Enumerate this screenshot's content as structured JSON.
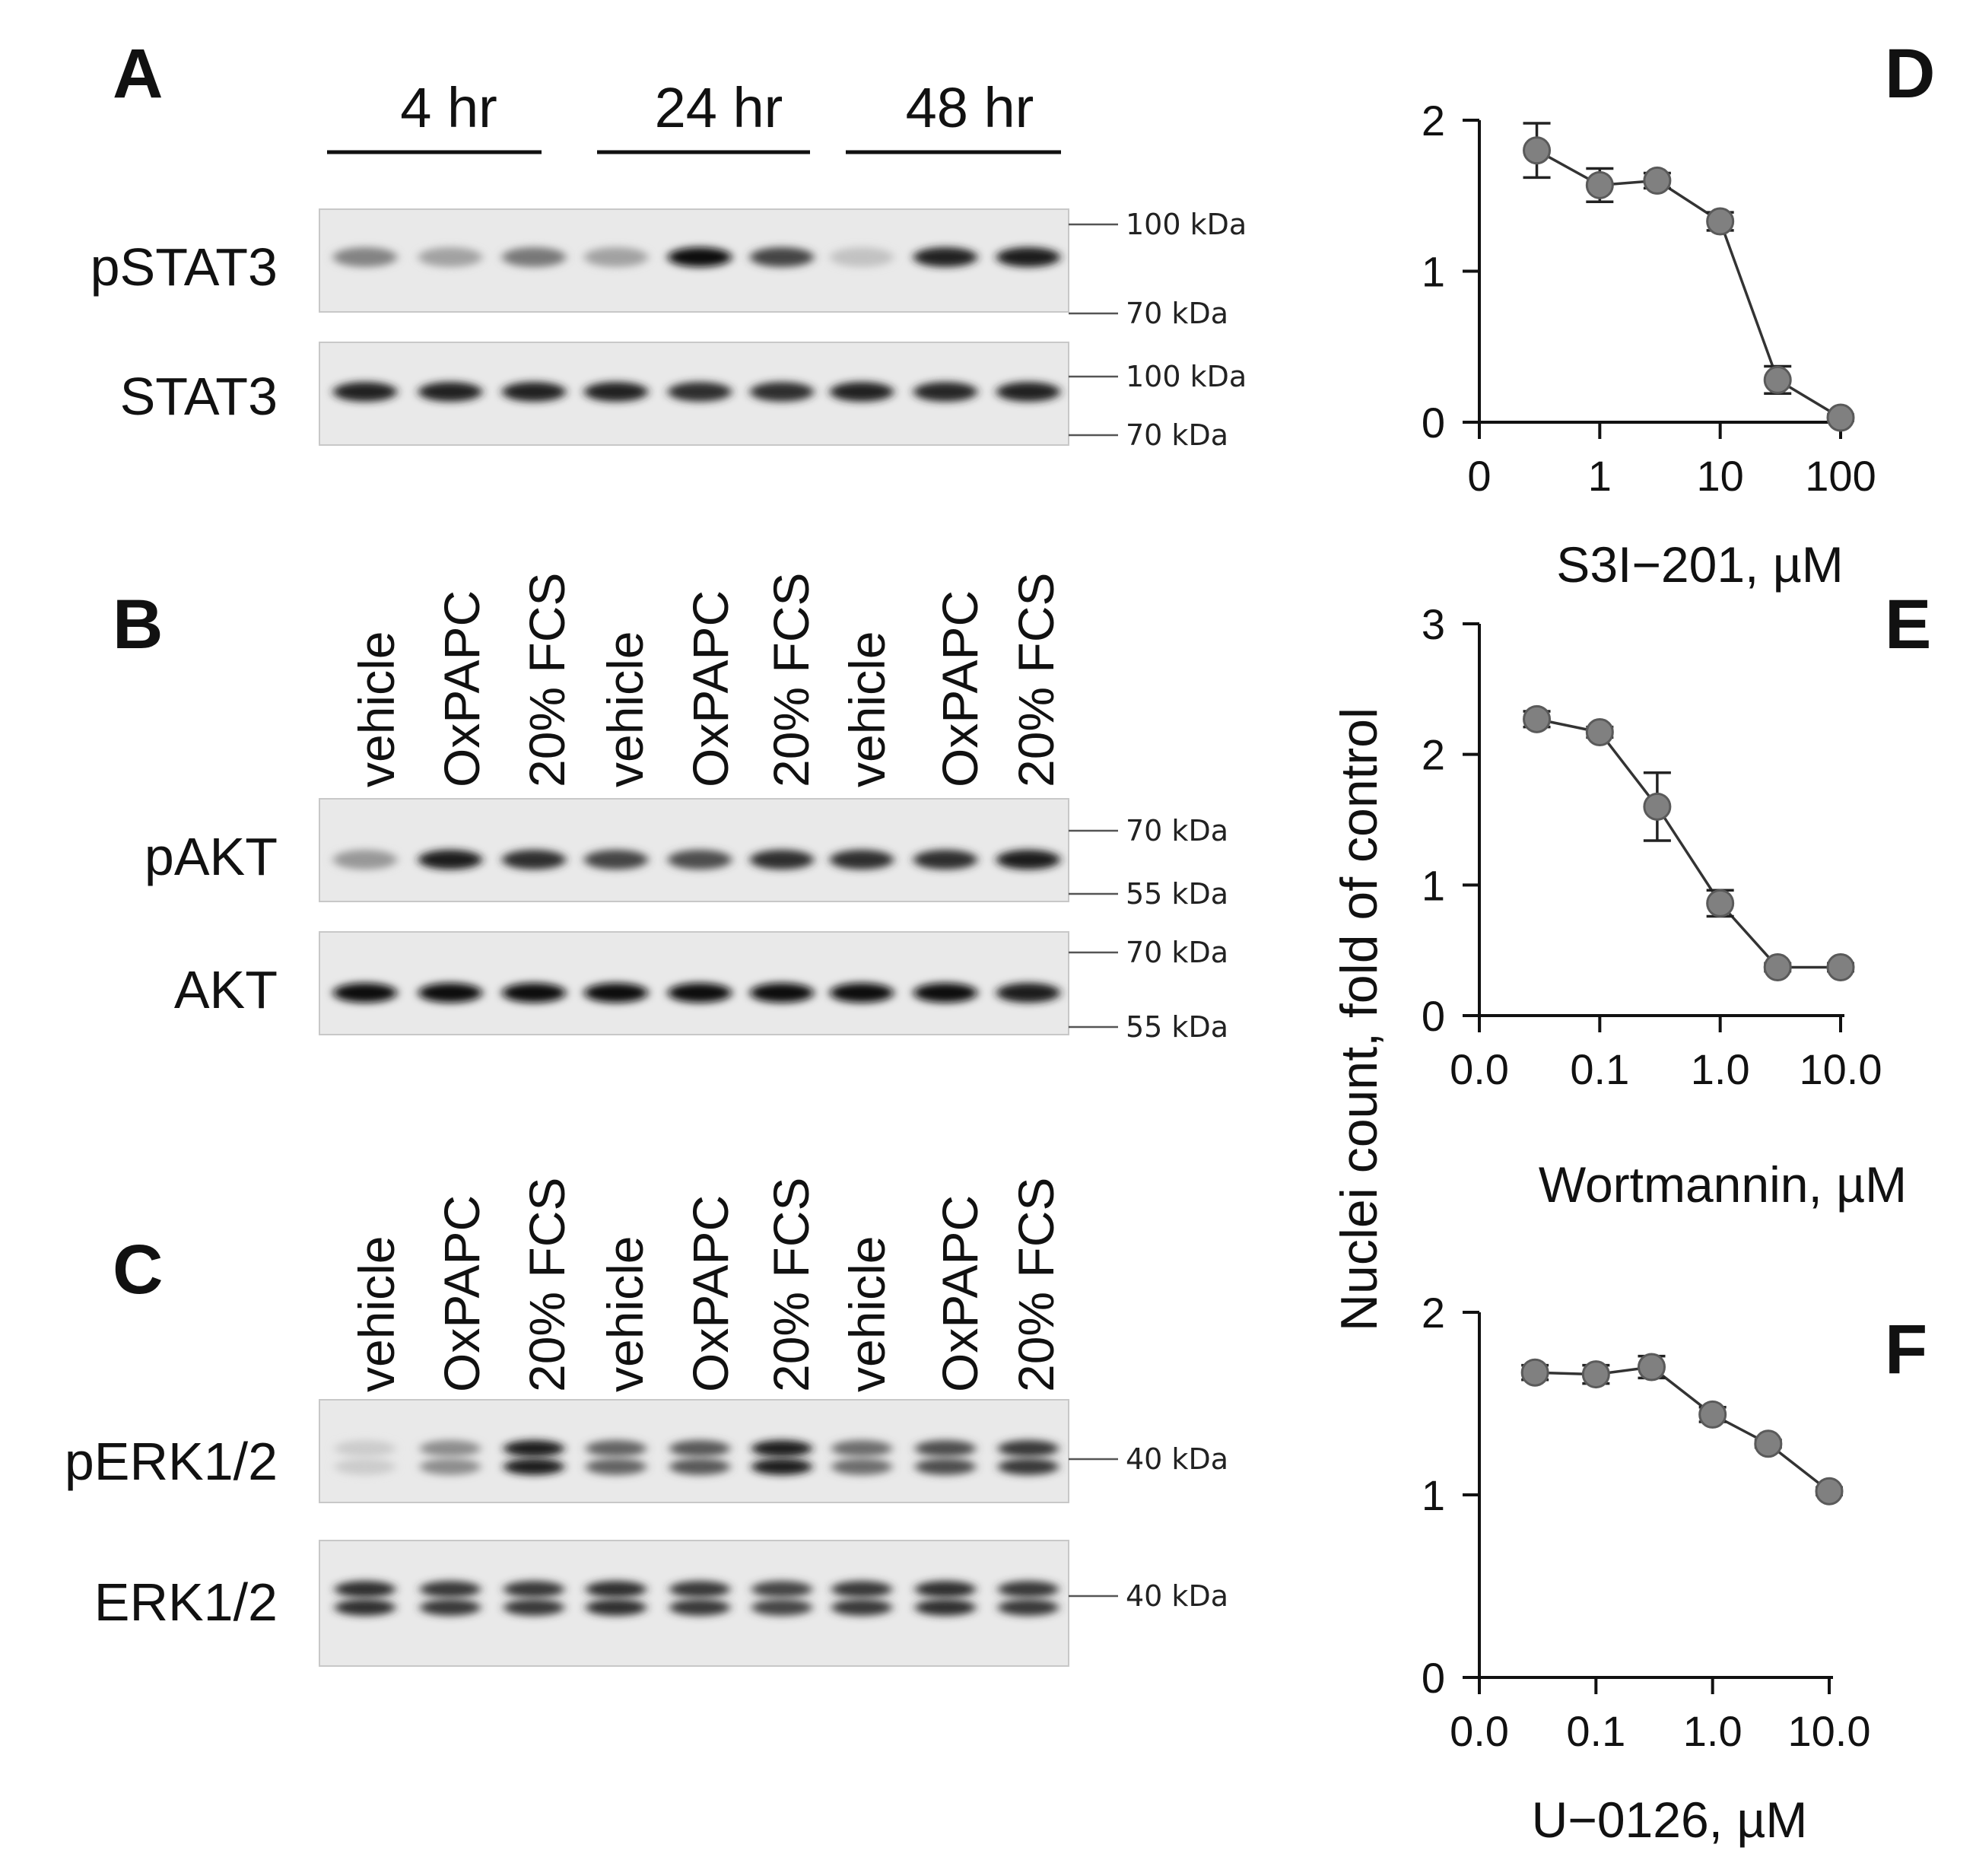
{
  "panels": {
    "A": "A",
    "B": "B",
    "C": "C",
    "D": "D",
    "E": "E",
    "F": "F"
  },
  "time_points": [
    "4 hr",
    "24 hr",
    "48 hr"
  ],
  "lanes": [
    "vehicle",
    "OxPAPC",
    "20% FCS",
    "vehicle",
    "OxPAPC",
    "20% FCS",
    "vehicle",
    "OxPAPC",
    "20% FCS"
  ],
  "blots": [
    {
      "id": "pSTAT3",
      "label": "pSTAT3",
      "markers": [
        "100 kDa",
        "70 kDa"
      ],
      "band_intensity": [
        0.45,
        0.3,
        0.5,
        0.3,
        1.0,
        0.75,
        0.15,
        0.9,
        0.95
      ],
      "double_band": false
    },
    {
      "id": "STAT3",
      "label": "STAT3",
      "markers": [
        "100 kDa",
        "70 kDa"
      ],
      "band_intensity": [
        0.9,
        0.9,
        0.9,
        0.9,
        0.85,
        0.85,
        0.9,
        0.88,
        0.9
      ],
      "double_band": false
    },
    {
      "id": "pAKT",
      "label": "pAKT",
      "markers": [
        "70 kDa",
        "55 kDa"
      ],
      "band_intensity": [
        0.35,
        0.95,
        0.85,
        0.75,
        0.7,
        0.85,
        0.85,
        0.85,
        0.95
      ],
      "double_band": false
    },
    {
      "id": "AKT",
      "label": "AKT",
      "markers": [
        "70 kDa",
        "55 kDa"
      ],
      "band_intensity": [
        1.0,
        1.0,
        1.0,
        1.0,
        1.0,
        1.0,
        1.0,
        1.0,
        0.95
      ],
      "double_band": false
    },
    {
      "id": "pERK",
      "label": "pERK1/2",
      "markers": [
        "40 kDa"
      ],
      "band_intensity": [
        0.1,
        0.4,
        0.95,
        0.6,
        0.65,
        0.95,
        0.55,
        0.7,
        0.8
      ],
      "double_band": true
    },
    {
      "id": "ERK",
      "label": "ERK1/2",
      "markers": [
        "40 kDa"
      ],
      "band_intensity": [
        0.85,
        0.8,
        0.8,
        0.85,
        0.8,
        0.75,
        0.8,
        0.85,
        0.8
      ],
      "double_band": true
    }
  ],
  "chart_data": [
    {
      "id": "D",
      "type": "line",
      "x_scale": "log",
      "xlabel": "S3I−201, µM",
      "x_ticks": [
        {
          "value": 0.1,
          "label": "0"
        },
        {
          "value": 1,
          "label": "1"
        },
        {
          "value": 10,
          "label": "10"
        },
        {
          "value": 100,
          "label": "100"
        }
      ],
      "ylim": [
        0,
        2
      ],
      "y_ticks": [
        0,
        1,
        2
      ],
      "x": [
        0.3,
        1,
        3,
        10,
        30,
        100
      ],
      "y": [
        1.8,
        1.57,
        1.6,
        1.33,
        0.28,
        0.03
      ],
      "err": [
        0.18,
        0.11,
        0.05,
        0.06,
        0.09,
        0.02
      ]
    },
    {
      "id": "E",
      "type": "line",
      "x_scale": "log",
      "xlabel": "Wortmannin, µM",
      "x_ticks": [
        {
          "value": 0.01,
          "label": "0.0"
        },
        {
          "value": 0.1,
          "label": "0.1"
        },
        {
          "value": 1,
          "label": "1.0"
        },
        {
          "value": 10,
          "label": "10.0"
        }
      ],
      "ylim": [
        0,
        3
      ],
      "y_ticks": [
        0,
        1,
        2,
        3
      ],
      "x": [
        0.03,
        0.1,
        0.3,
        1,
        3,
        10
      ],
      "y": [
        2.27,
        2.17,
        1.6,
        0.86,
        0.37,
        0.37
      ],
      "err": [
        0.06,
        0.04,
        0.26,
        0.1,
        0.03,
        0.03
      ]
    },
    {
      "id": "F",
      "type": "line",
      "x_scale": "log",
      "xlabel": "U−0126, µM",
      "x_ticks": [
        {
          "value": 0.01,
          "label": "0.0"
        },
        {
          "value": 0.1,
          "label": "0.1"
        },
        {
          "value": 1,
          "label": "1.0"
        },
        {
          "value": 10,
          "label": "10.0"
        }
      ],
      "ylim": [
        0,
        2
      ],
      "y_ticks": [
        0,
        1,
        2
      ],
      "x": [
        0.03,
        0.1,
        0.3,
        1,
        3,
        10
      ],
      "y": [
        1.67,
        1.66,
        1.7,
        1.44,
        1.28,
        1.02
      ],
      "err": [
        0.04,
        0.05,
        0.06,
        0.04,
        0.02,
        0.02
      ]
    }
  ],
  "shared_ylabel": "Nuclei count,  fold of control"
}
